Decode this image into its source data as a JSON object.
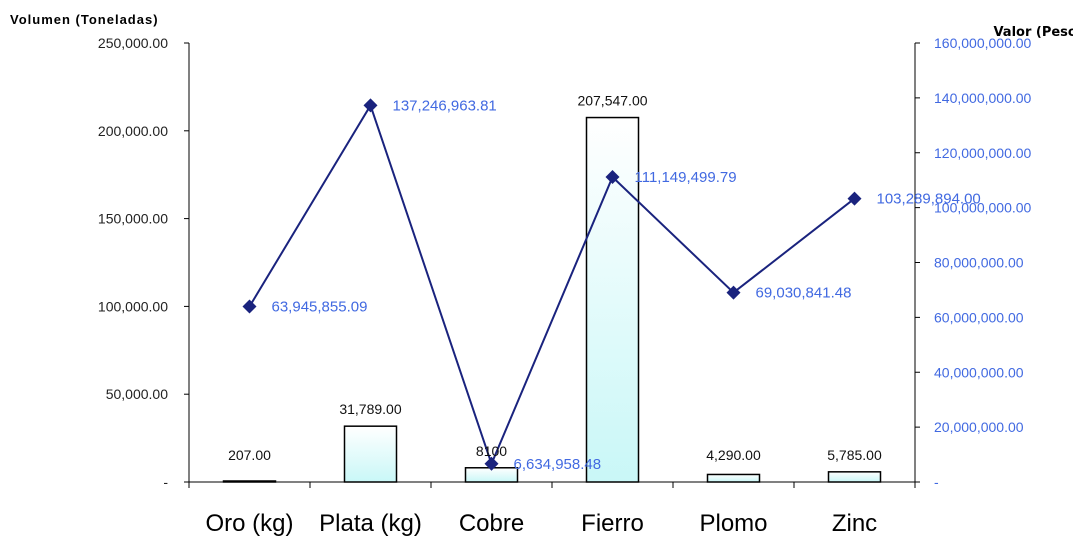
{
  "chart_data": {
    "type": "bar",
    "categories": [
      "Oro (kg)",
      "Plata (kg)",
      "Cobre",
      "Fierro",
      "Plomo",
      "Zinc"
    ],
    "ylabel_left": "Volumen (Toneladas)",
    "ylabel_right": "Valor (Pesos)",
    "ylim_left": [
      0,
      250000
    ],
    "ylim_right": [
      0,
      160000000
    ],
    "left_ticks": [
      "-",
      "50,000.00",
      "100,000.00",
      "150,000.00",
      "200,000.00",
      "250,000.00"
    ],
    "right_ticks": [
      "-",
      "20,000,000.00",
      "40,000,000.00",
      "60,000,000.00",
      "80,000,000.00",
      "100,000,000.00",
      "120,000,000.00",
      "140,000,000.00",
      "160,000,000.00"
    ],
    "series": [
      {
        "kind": "bar",
        "axis": "left",
        "values": [
          207,
          31789,
          8100,
          207547,
          4290,
          5785
        ],
        "labels": [
          "207.00",
          "31,789.00",
          "8100",
          "207,547.00",
          "4,290.00",
          "5,785.00"
        ]
      },
      {
        "kind": "line",
        "axis": "right",
        "values": [
          63945855.09,
          137246963.81,
          6634958.48,
          111149499.79,
          69030841.48,
          103289894.0
        ],
        "labels": [
          "63,945,855.09",
          "137,246,963.81",
          "6,634,958.48",
          "111,149,499.79",
          "69,030,841.48",
          "103,289,894.00"
        ]
      }
    ],
    "colors": {
      "bar_top": "#ffffff",
      "bar_bottom": "#c9f7f7",
      "bar_stroke": "#000000",
      "line": "#1a237e",
      "marker": "#1a237e",
      "line_label": "#4169e1"
    },
    "grid": false,
    "legend": "none"
  }
}
